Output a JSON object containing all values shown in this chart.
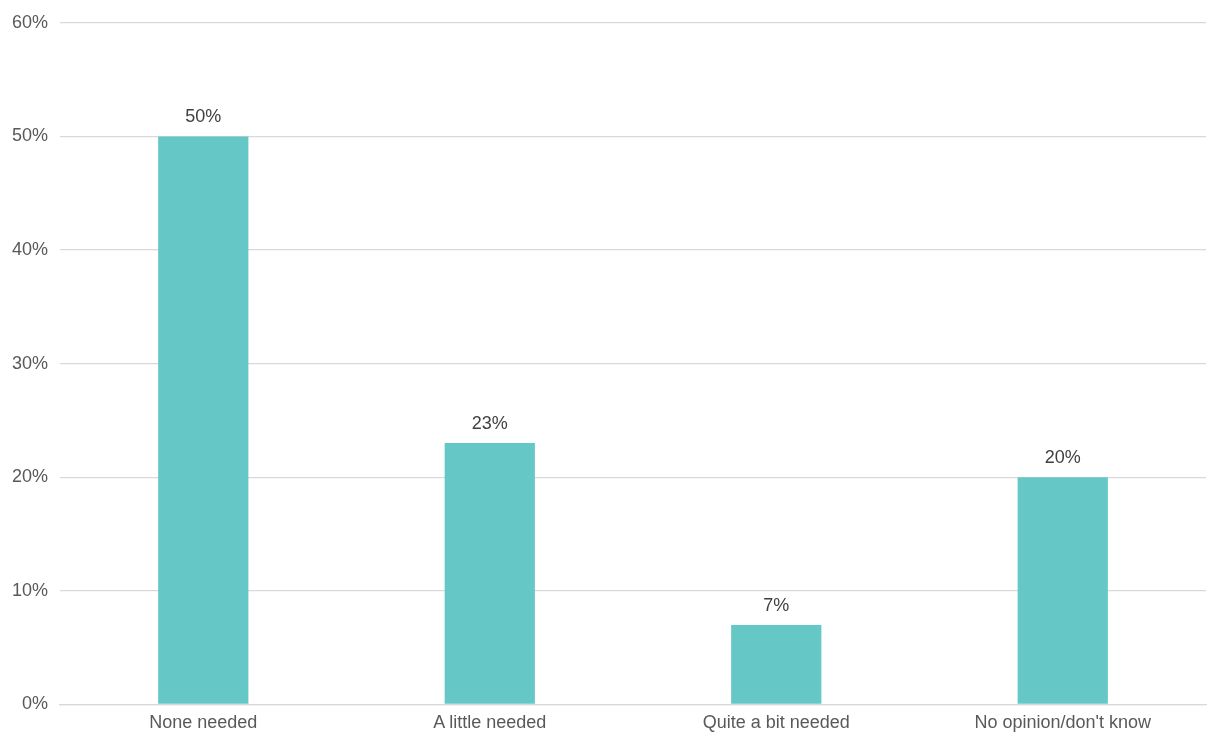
{
  "chart_data": {
    "type": "bar",
    "categories": [
      "None needed",
      "A little needed",
      "Quite a bit needed",
      "No opinion/don't know"
    ],
    "values": [
      50,
      23,
      7,
      20
    ],
    "value_labels": [
      "50%",
      "23%",
      "7%",
      "20%"
    ],
    "color": "#66c7c7",
    "ylim": [
      0,
      60
    ],
    "yticks": [
      {
        "value": 0,
        "label": "0%"
      },
      {
        "value": 10,
        "label": "10%"
      },
      {
        "value": 20,
        "label": "20%"
      },
      {
        "value": 30,
        "label": "30%"
      },
      {
        "value": 40,
        "label": "40%"
      },
      {
        "value": 50,
        "label": "50%"
      },
      {
        "value": 60,
        "label": "60%"
      }
    ],
    "grid": "y",
    "legend": false
  }
}
